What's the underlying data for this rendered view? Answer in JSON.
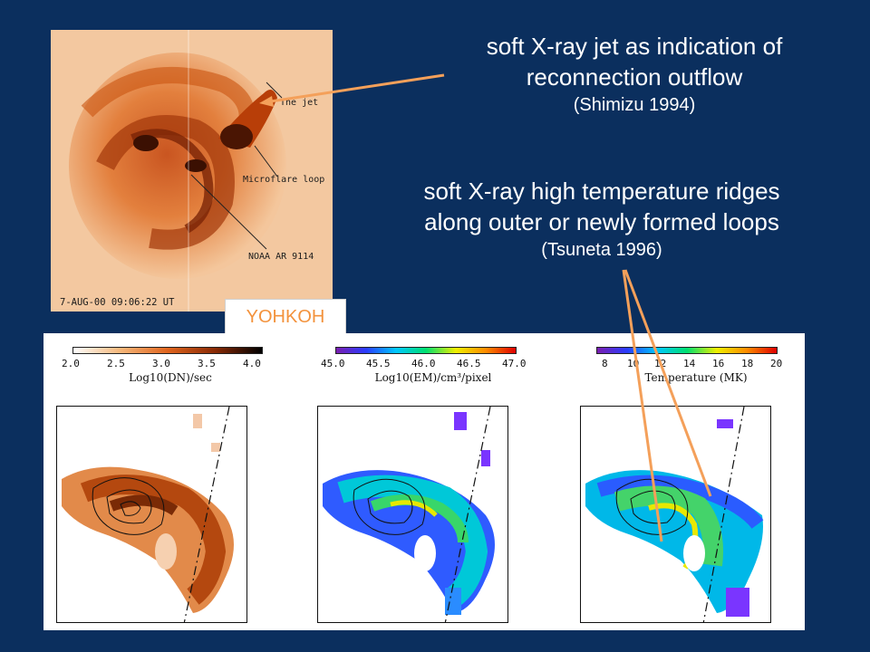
{
  "yohkoh_image": {
    "labels": {
      "jet": "The jet",
      "microflare": "Microflare loop",
      "region": "NOAA AR 9114"
    },
    "timestamp": "7-AUG-00   09:06:22 UT"
  },
  "badge": "YOHKOH",
  "callout_jet": {
    "line1": "soft X-ray jet as indication of",
    "line2": "reconnection outflow",
    "ref": "(Shimizu 1994)"
  },
  "callout_ridge": {
    "line1": "soft X-ray high temperature ridges",
    "line2": "along outer or newly formed loops",
    "ref": "(Tsuneta 1996)"
  },
  "panels": [
    {
      "title": "Log10(DN)/sec",
      "ticks": [
        "2.0",
        "2.5",
        "3.0",
        "3.5",
        "4.0"
      ],
      "colormap": "orange"
    },
    {
      "title": "Log10(EM)/cm³/pixel",
      "ticks": [
        "45.0",
        "45.5",
        "46.0",
        "46.5",
        "47.0"
      ],
      "colormap": "rainbow"
    },
    {
      "title": "Temperature (MK)",
      "ticks": [
        "8",
        "10",
        "12",
        "14",
        "16",
        "18",
        "20"
      ],
      "colormap": "rainbow"
    }
  ],
  "colors": {
    "background": "#0b2f5e",
    "arrow": "#f4a05a",
    "badge_text": "#f3923c"
  }
}
